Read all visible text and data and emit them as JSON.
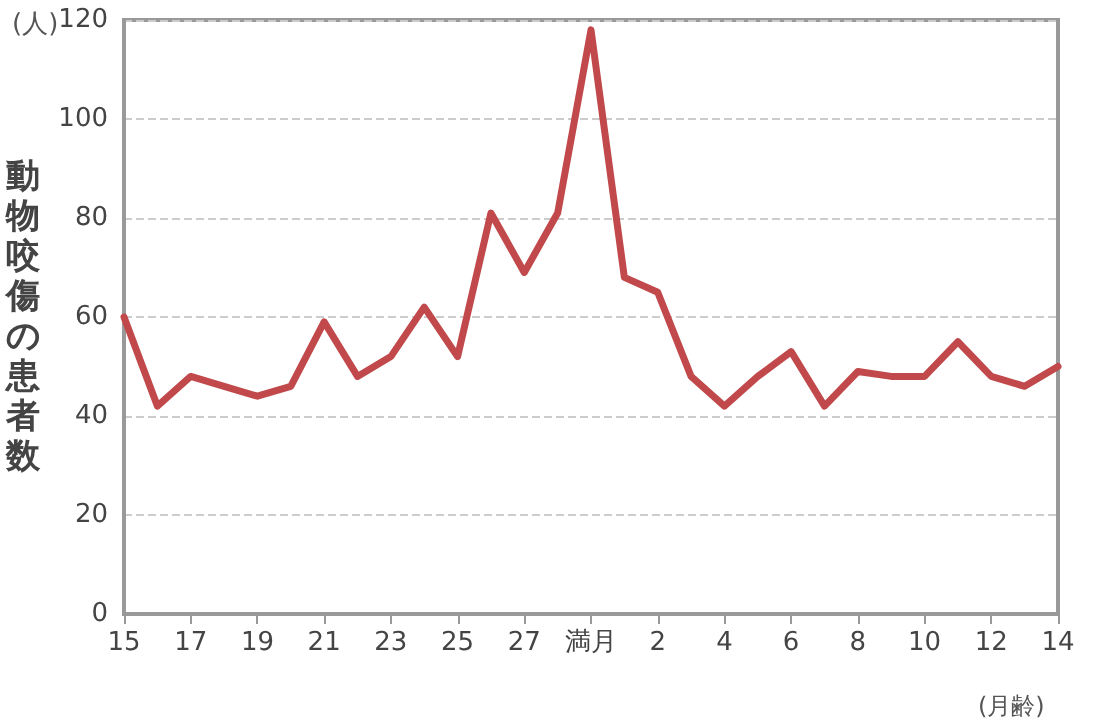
{
  "chart_data": {
    "type": "line",
    "ylabel": "動物咬傷の患者数",
    "xlabel": "(月齢)",
    "annotations": [
      "(人)"
    ],
    "categories": [
      "15",
      null,
      "17",
      null,
      "19",
      null,
      "21",
      null,
      "23",
      null,
      "25",
      null,
      "27",
      null,
      "満月",
      null,
      "2",
      null,
      "4",
      null,
      "6",
      null,
      "8",
      null,
      "10",
      null,
      "12",
      null,
      "14"
    ],
    "series": [
      {
        "color": "#c1494b",
        "values": [
          60,
          42,
          48,
          46,
          44,
          46,
          59,
          48,
          52,
          62,
          52,
          81,
          69,
          81,
          118,
          68,
          65,
          48,
          42,
          48,
          53,
          42,
          49,
          48,
          48,
          55,
          48,
          46,
          50
        ]
      }
    ],
    "ylim": [
      0,
      120
    ],
    "yticks": [
      0,
      20,
      40,
      60,
      80,
      100,
      120
    ],
    "grid": "y",
    "marker": "none",
    "line_style": "solid"
  }
}
